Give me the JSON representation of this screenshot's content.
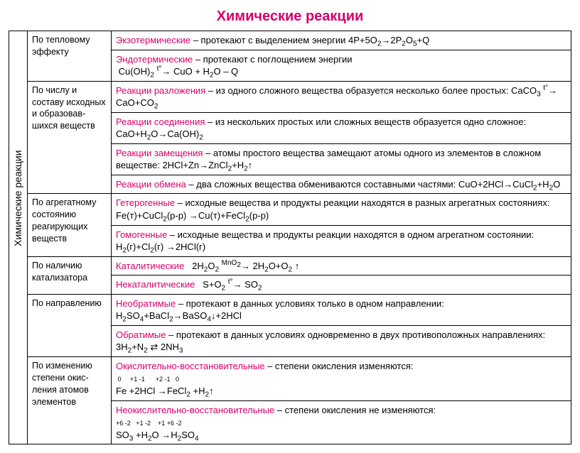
{
  "title": "Химические реакции",
  "vertical_label": "Химические реакции",
  "colors": {
    "accent": "#d6006c",
    "text": "#000",
    "border": "#000",
    "bg": "#fff"
  },
  "fonts": {
    "title_size": 20,
    "body_size": 13,
    "family": "Arial"
  },
  "categories": [
    {
      "label": "По тепловому эффекту",
      "rowspan": 2
    },
    {
      "label": "По числу и составу исходных и образовав­шихся веществ",
      "rowspan": 4
    },
    {
      "label": "По агрегатно­му состоянию реагирующих веществ",
      "rowspan": 2
    },
    {
      "label": "По наличию катализатора",
      "rowspan": 2
    },
    {
      "label": "По направлению",
      "rowspan": 2
    },
    {
      "label": "По изменению степени окис­ления атомов элементов",
      "rowspan": 2
    }
  ],
  "rows": [
    {
      "term": "Экзотермические",
      "text": " – протекают с выделением энергии 4P+5O₂→2P₂O₅+Q"
    },
    {
      "term": "Эндотермические",
      "text": " – протекают с поглощением энергии<br>&nbsp;Cu(OH)₂ <sup>t°</sup>→ CuO + H₂O – Q"
    },
    {
      "term": "Реакции разложения",
      "text": " – из одного сложного вещества образуется несколько более простых: CaCO₃ <sup>t°</sup>→ CaO+CO₂"
    },
    {
      "term": "Реакции соединения",
      "text": " – из нескольких простых или сложных веществ образуется одно сложное: CaO+H₂O→Ca(OH)₂"
    },
    {
      "term": "Реакции замещения",
      "text": " – атомы простого вещества замещают атомы одного из элементов в сложном веществе: 2HCl+Zn→ZnCl₂+H₂↑"
    },
    {
      "term": "Реакции обмена",
      "text": " – два сложных вещества обмениваются составными частями: CuO+2HCl→CuCl₂+H₂O"
    },
    {
      "term": "Гетерогенные",
      "text": " – исходные вещества и продукты реакции находятся в разных агрегатных состояниях: Fe(т)+CuCl₂(р-р) →Cu(т)+FeCl₂(р-р)"
    },
    {
      "term": "Гомогенные",
      "text": " – исходные вещества и продукты реакции находятся в одном агрегатном состоянии: H₂(г)+Cl₂(г) →2HCl(г)"
    },
    {
      "term": "Каталитические",
      "text": "&nbsp;&nbsp;&nbsp;2H₂O₂ <sup>MnO₂</sup>→ 2H₂O+O₂ ↑"
    },
    {
      "term": "Некаталитические",
      "text": "&nbsp;&nbsp;&nbsp;S+O₂ <sup>t°</sup>→ SO₂"
    },
    {
      "term": "Необратимые",
      "text": " – протекают в данных условиях только в одном направлении: H₂SO₄+BaCl₂→BaSO₄↓+2HCl"
    },
    {
      "term": "Обратимые",
      "text": " – протекают в данных условиях одновременно в двух противоположных направлениях: 3H₂+N₂ ⇄ 2NH₃"
    },
    {
      "term": "Окислительно-восстановительные",
      "text": " – степени окисления изменяются:<br><span class='ox'>&nbsp;0&nbsp;&nbsp;&nbsp;&nbsp;&nbsp;+1 -1&nbsp;&nbsp;&nbsp;&nbsp;&nbsp;&nbsp;+2&nbsp;-1&nbsp;&nbsp;&nbsp;0</span><br>Fe +2HCl →FeCl₂ +H₂↑"
    },
    {
      "term": "Неокислительно-восстановительные",
      "text": " – степени окисления не изменяются:<br><span class='ox'>+6&nbsp;-2&nbsp;&nbsp;&nbsp;+1 -2&nbsp;&nbsp;&nbsp;&nbsp;+1&nbsp;+6&nbsp;-2</span><br>SO₃ +H₂O →H₂SO₄"
    }
  ]
}
